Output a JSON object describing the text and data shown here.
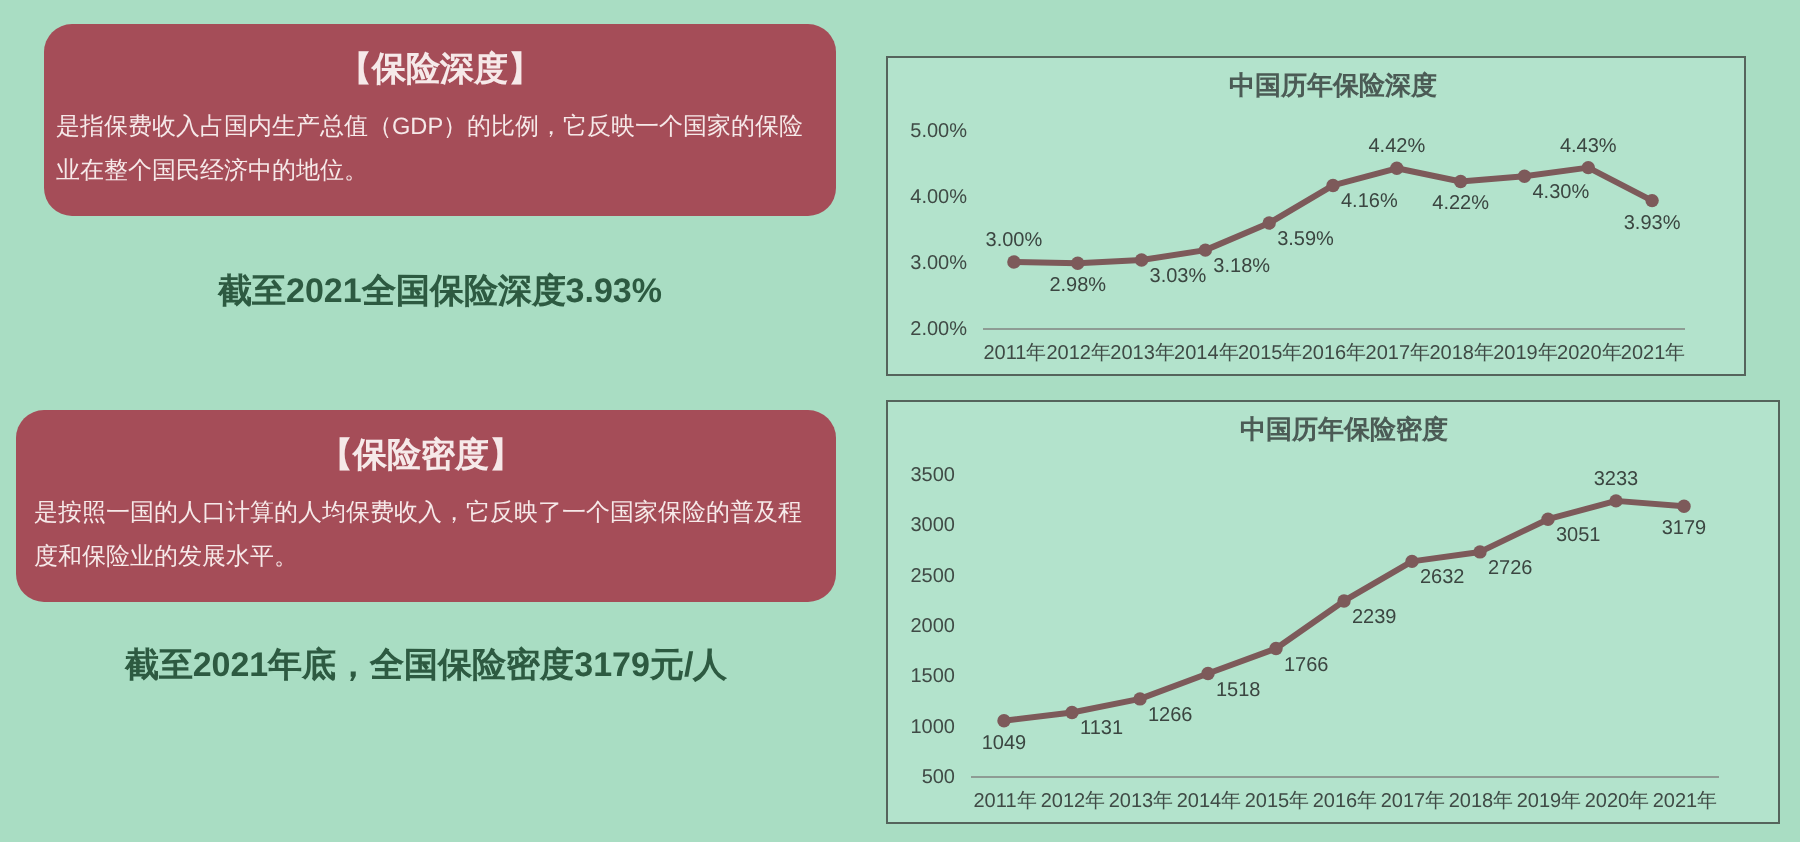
{
  "chart_data": [
    {
      "type": "other",
      "title": "【保险深度】",
      "subtitle": "是指保费收入占国内生产总值（GDP）的比例，它反映一个国家的保险业在整个国民经济中的地位。",
      "annotations": [
        "截至2021全国保险深度3.93%"
      ]
    },
    {
      "type": "line",
      "title": "中国历年保险深度",
      "categories": [
        "2011年",
        "2012年",
        "2013年",
        "2014年",
        "2015年",
        "2016年",
        "2017年",
        "2018年",
        "2019年",
        "2020年",
        "2021年"
      ],
      "values": [
        3.0,
        2.98,
        3.03,
        3.18,
        3.59,
        4.16,
        4.42,
        4.22,
        4.3,
        4.43,
        3.93
      ],
      "value_labels": [
        "3.00%",
        "2.98%",
        "3.03%",
        "3.18%",
        "3.59%",
        "4.16%",
        "4.42%",
        "4.22%",
        "4.30%",
        "4.43%",
        "3.93%"
      ],
      "color": "#7d5a5a",
      "ylim": [
        2,
        5
      ],
      "yticks": [
        {
          "value": 2,
          "label": "2.00%"
        },
        {
          "value": 3,
          "label": "3.00%"
        },
        {
          "value": 4,
          "label": "4.00%"
        },
        {
          "value": 5,
          "label": "5.00%"
        }
      ],
      "marker": "circle"
    },
    {
      "type": "other",
      "title": "【保险密度】",
      "subtitle": "是按照一国的人口计算的人均保费收入，它反映了一个国家保险的普及程度和保险业的发展水平。",
      "annotations": [
        "截至2021年底，全国保险密度3179元/人"
      ]
    },
    {
      "type": "line",
      "title": "中国历年保险密度",
      "categories": [
        "2011年",
        "2012年",
        "2013年",
        "2014年",
        "2015年",
        "2016年",
        "2017年",
        "2018年",
        "2019年",
        "2020年",
        "2021年"
      ],
      "values": [
        1049,
        1131,
        1266,
        1518,
        1766,
        2239,
        2632,
        2726,
        3051,
        3233,
        3179
      ],
      "data_labels": true,
      "color": "#7d5a5a",
      "ylim": [
        500,
        3500
      ],
      "yticks": [
        500,
        1000,
        1500,
        2000,
        2500,
        3000,
        3500
      ],
      "marker": "circle"
    }
  ]
}
